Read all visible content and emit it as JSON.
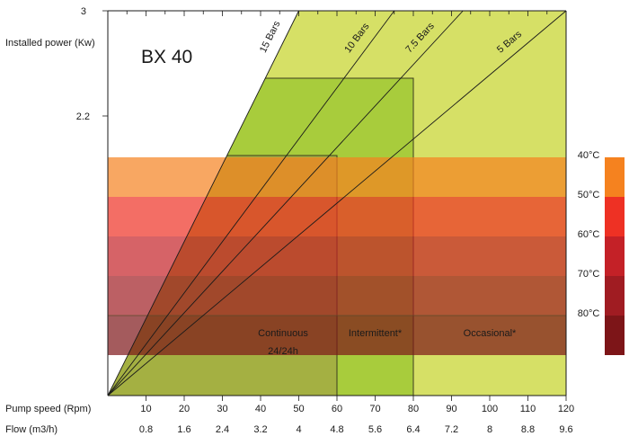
{
  "chart_data": {
    "type": "area",
    "title": "BX 40",
    "ylabel": "Installed power (Kw)",
    "y_ticks": [
      "3",
      "2.2"
    ],
    "x_rows": [
      {
        "label": "Pump speed (Rpm)",
        "ticks": [
          "10",
          "20",
          "30",
          "40",
          "50",
          "60",
          "70",
          "80",
          "90",
          "100",
          "110",
          "120"
        ]
      },
      {
        "label": "Flow (m3/h)",
        "ticks": [
          "0.8",
          "1.6",
          "2.4",
          "3.2",
          "4",
          "4.8",
          "5.6",
          "6.4",
          "7.2",
          "8",
          "8.8",
          "9.6"
        ]
      }
    ],
    "xlim": [
      0,
      120
    ],
    "pressure_lines": [
      {
        "label": "15 Bars",
        "end_speed": 50
      },
      {
        "label": "10 Bars",
        "end_speed": 75
      },
      {
        "label": "7.5 Bars",
        "end_speed": 93
      },
      {
        "label": "5 Bars",
        "end_speed": 120
      }
    ],
    "duty_zones": [
      {
        "label": "Continuous",
        "sublabel": "24/24h",
        "from": 0,
        "to": 60,
        "color": "#a4b042"
      },
      {
        "label": "Intermittent*",
        "sublabel": "",
        "from": 60,
        "to": 80,
        "color": "#a8cc3c"
      },
      {
        "label": "Occasional*",
        "sublabel": "",
        "from": 80,
        "to": 120,
        "color": "#d6e066"
      }
    ],
    "temperature_bands": [
      {
        "label": "40°C",
        "color": "#f5821f"
      },
      {
        "label": "50°C",
        "color": "#ee3124"
      },
      {
        "label": "60°C",
        "color": "#c42127"
      },
      {
        "label": "70°C",
        "color": "#a01c22"
      },
      {
        "label": "80°C",
        "color": "#7d1518"
      }
    ]
  }
}
